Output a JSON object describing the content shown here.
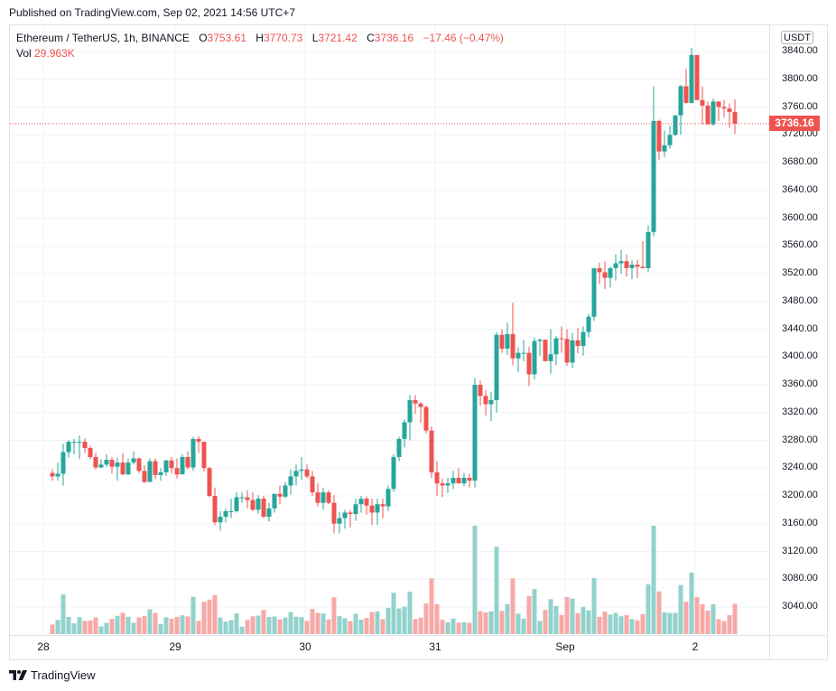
{
  "header": {
    "published": "Published on TradingView.com, Sep 02, 2021 14:56 UTC+7"
  },
  "legend": {
    "symbol": "Ethereum / TetherUS, 1h, BINANCE",
    "open_label": "O",
    "open": "3753.61",
    "high_label": "H",
    "high": "3770.73",
    "low_label": "L",
    "low": "3721.42",
    "close_label": "C",
    "close": "3736.16",
    "change": "−17.46 (−0.47%)",
    "vol_label": "Vol",
    "vol": "29.963K"
  },
  "price_axis": {
    "currency": "USDT",
    "last_price": "3736.16",
    "ticks": [
      "3840.00",
      "3800.00",
      "3760.00",
      "3720.00",
      "3680.00",
      "3640.00",
      "3600.00",
      "3560.00",
      "3520.00",
      "3480.00",
      "3440.00",
      "3400.00",
      "3360.00",
      "3320.00",
      "3280.00",
      "3240.00",
      "3200.00",
      "3160.00",
      "3120.00",
      "3080.00",
      "3040.00"
    ]
  },
  "time_axis": {
    "labels": [
      "28",
      "29",
      "30",
      "31",
      "Sep",
      "2"
    ]
  },
  "footer": {
    "brand": "TradingView"
  },
  "colors": {
    "up": "#26a69a",
    "down": "#ef5350",
    "vol_up": "#92d2cc",
    "vol_down": "#f7a9a7",
    "grid": "#f0f3fa",
    "last_price_line": "#ef5350"
  },
  "chart_data": {
    "type": "candlestick",
    "title": "Ethereum / TetherUS, 1h, BINANCE",
    "interval": "1h",
    "xlabel": "",
    "ylabel": "USDT",
    "ylim": [
      3010,
      3870
    ],
    "x_ticks": [
      "28",
      "29",
      "30",
      "31",
      "Sep",
      "2"
    ],
    "grid": true,
    "last": {
      "open": 3753.61,
      "high": 3770.73,
      "low": 3721.42,
      "close": 3736.16,
      "change": -17.46,
      "change_pct": -0.47,
      "volume": "29.963K"
    },
    "candles": [
      [
        3233,
        3238,
        3222,
        3228
      ],
      [
        3228,
        3248,
        3222,
        3232
      ],
      [
        3232,
        3275,
        3215,
        3263
      ],
      [
        3263,
        3280,
        3255,
        3278
      ],
      [
        3278,
        3282,
        3260,
        3278
      ],
      [
        3278,
        3287,
        3253,
        3278
      ],
      [
        3278,
        3283,
        3262,
        3269
      ],
      [
        3269,
        3272,
        3253,
        3256
      ],
      [
        3256,
        3262,
        3238,
        3241
      ],
      [
        3241,
        3253,
        3240,
        3245
      ],
      [
        3245,
        3260,
        3242,
        3252
      ],
      [
        3252,
        3256,
        3232,
        3242
      ],
      [
        3242,
        3255,
        3222,
        3248
      ],
      [
        3248,
        3262,
        3230,
        3231
      ],
      [
        3231,
        3254,
        3230,
        3248
      ],
      [
        3248,
        3264,
        3245,
        3254
      ],
      [
        3254,
        3255,
        3233,
        3236
      ],
      [
        3236,
        3244,
        3218,
        3220
      ],
      [
        3220,
        3254,
        3223,
        3250
      ],
      [
        3250,
        3254,
        3224,
        3230
      ],
      [
        3230,
        3240,
        3222,
        3234
      ],
      [
        3234,
        3252,
        3229,
        3251
      ],
      [
        3251,
        3256,
        3232,
        3240
      ],
      [
        3240,
        3254,
        3225,
        3231
      ],
      [
        3231,
        3260,
        3238,
        3256
      ],
      [
        3256,
        3264,
        3238,
        3241
      ],
      [
        3241,
        3285,
        3236,
        3282
      ],
      [
        3282,
        3286,
        3262,
        3278
      ],
      [
        3278,
        3276,
        3235,
        3240
      ],
      [
        3240,
        3242,
        3198,
        3200
      ],
      [
        3200,
        3212,
        3158,
        3162
      ],
      [
        3162,
        3178,
        3150,
        3170
      ],
      [
        3170,
        3182,
        3162,
        3178
      ],
      [
        3178,
        3196,
        3168,
        3178
      ],
      [
        3178,
        3205,
        3176,
        3198
      ],
      [
        3198,
        3205,
        3190,
        3198
      ],
      [
        3198,
        3208,
        3182,
        3194
      ],
      [
        3194,
        3205,
        3178,
        3180
      ],
      [
        3180,
        3201,
        3174,
        3196
      ],
      [
        3196,
        3200,
        3168,
        3170
      ],
      [
        3170,
        3190,
        3163,
        3182
      ],
      [
        3182,
        3198,
        3176,
        3203
      ],
      [
        3203,
        3215,
        3188,
        3199
      ],
      [
        3199,
        3220,
        3197,
        3215
      ],
      [
        3215,
        3238,
        3202,
        3228
      ],
      [
        3228,
        3245,
        3215,
        3236
      ],
      [
        3236,
        3256,
        3223,
        3238
      ],
      [
        3238,
        3245,
        3225,
        3228
      ],
      [
        3228,
        3236,
        3200,
        3205
      ],
      [
        3205,
        3218,
        3185,
        3190
      ],
      [
        3190,
        3212,
        3180,
        3205
      ],
      [
        3205,
        3208,
        3188,
        3190
      ],
      [
        3190,
        3201,
        3146,
        3160
      ],
      [
        3160,
        3177,
        3146,
        3168
      ],
      [
        3168,
        3180,
        3153,
        3176
      ],
      [
        3176,
        3180,
        3155,
        3174
      ],
      [
        3174,
        3196,
        3164,
        3188
      ],
      [
        3188,
        3200,
        3176,
        3196
      ],
      [
        3196,
        3199,
        3173,
        3186
      ],
      [
        3186,
        3196,
        3158,
        3176
      ],
      [
        3176,
        3196,
        3158,
        3188
      ],
      [
        3188,
        3196,
        3168,
        3185
      ],
      [
        3185,
        3215,
        3178,
        3210
      ],
      [
        3210,
        3260,
        3206,
        3256
      ],
      [
        3256,
        3285,
        3250,
        3282
      ],
      [
        3282,
        3310,
        3270,
        3306
      ],
      [
        3306,
        3345,
        3280,
        3338
      ],
      [
        3338,
        3345,
        3318,
        3333
      ],
      [
        3333,
        3335,
        3305,
        3328
      ],
      [
        3328,
        3330,
        3290,
        3294
      ],
      [
        3294,
        3300,
        3226,
        3234
      ],
      [
        3234,
        3250,
        3200,
        3218
      ],
      [
        3218,
        3225,
        3198,
        3215
      ],
      [
        3215,
        3226,
        3204,
        3218
      ],
      [
        3218,
        3236,
        3210,
        3226
      ],
      [
        3226,
        3240,
        3222,
        3218
      ],
      [
        3218,
        3233,
        3214,
        3226
      ],
      [
        3226,
        3232,
        3212,
        3222
      ],
      [
        3222,
        3370,
        3212,
        3360
      ],
      [
        3360,
        3366,
        3330,
        3344
      ],
      [
        3344,
        3352,
        3316,
        3332
      ],
      [
        3332,
        3350,
        3308,
        3338
      ],
      [
        3338,
        3436,
        3320,
        3432
      ],
      [
        3432,
        3440,
        3406,
        3412
      ],
      [
        3412,
        3450,
        3403,
        3433
      ],
      [
        3433,
        3478,
        3388,
        3398
      ],
      [
        3398,
        3414,
        3378,
        3406
      ],
      [
        3406,
        3425,
        3394,
        3406
      ],
      [
        3406,
        3415,
        3358,
        3375
      ],
      [
        3375,
        3428,
        3368,
        3423
      ],
      [
        3423,
        3427,
        3402,
        3425
      ],
      [
        3425,
        3424,
        3395,
        3394
      ],
      [
        3394,
        3440,
        3376,
        3404
      ],
      [
        3404,
        3430,
        3388,
        3427
      ],
      [
        3427,
        3444,
        3406,
        3426
      ],
      [
        3426,
        3440,
        3387,
        3392
      ],
      [
        3392,
        3435,
        3384,
        3424
      ],
      [
        3424,
        3442,
        3405,
        3416
      ],
      [
        3416,
        3444,
        3402,
        3436
      ],
      [
        3436,
        3462,
        3428,
        3458
      ],
      [
        3458,
        3520,
        3452,
        3528
      ],
      [
        3528,
        3536,
        3505,
        3522
      ],
      [
        3522,
        3538,
        3498,
        3514
      ],
      [
        3514,
        3530,
        3500,
        3528
      ],
      [
        3528,
        3548,
        3510,
        3535
      ],
      [
        3535,
        3554,
        3520,
        3538
      ],
      [
        3538,
        3548,
        3516,
        3528
      ],
      [
        3528,
        3539,
        3512,
        3533
      ],
      [
        3533,
        3540,
        3514,
        3530
      ],
      [
        3530,
        3567,
        3528,
        3528
      ],
      [
        3528,
        3590,
        3523,
        3580
      ],
      [
        3580,
        3790,
        3574,
        3740
      ],
      [
        3740,
        3742,
        3684,
        3696
      ],
      [
        3696,
        3726,
        3688,
        3705
      ],
      [
        3705,
        3733,
        3700,
        3720
      ],
      [
        3720,
        3743,
        3718,
        3748
      ],
      [
        3748,
        3792,
        3720,
        3790
      ],
      [
        3790,
        3815,
        3765,
        3766
      ],
      [
        3766,
        3845,
        3765,
        3835
      ],
      [
        3835,
        3828,
        3795,
        3770
      ],
      [
        3770,
        3790,
        3735,
        3762
      ],
      [
        3762,
        3768,
        3738,
        3735
      ],
      [
        3735,
        3772,
        3733,
        3768
      ],
      [
        3768,
        3765,
        3740,
        3760
      ],
      [
        3760,
        3770,
        3745,
        3758
      ],
      [
        3758,
        3765,
        3730,
        3753
      ],
      [
        3753,
        3771,
        3721,
        3736
      ]
    ],
    "volume_note": "Volume bars rendered at bottom of pane in relative units (pixel heights), colored by candle direction."
  }
}
